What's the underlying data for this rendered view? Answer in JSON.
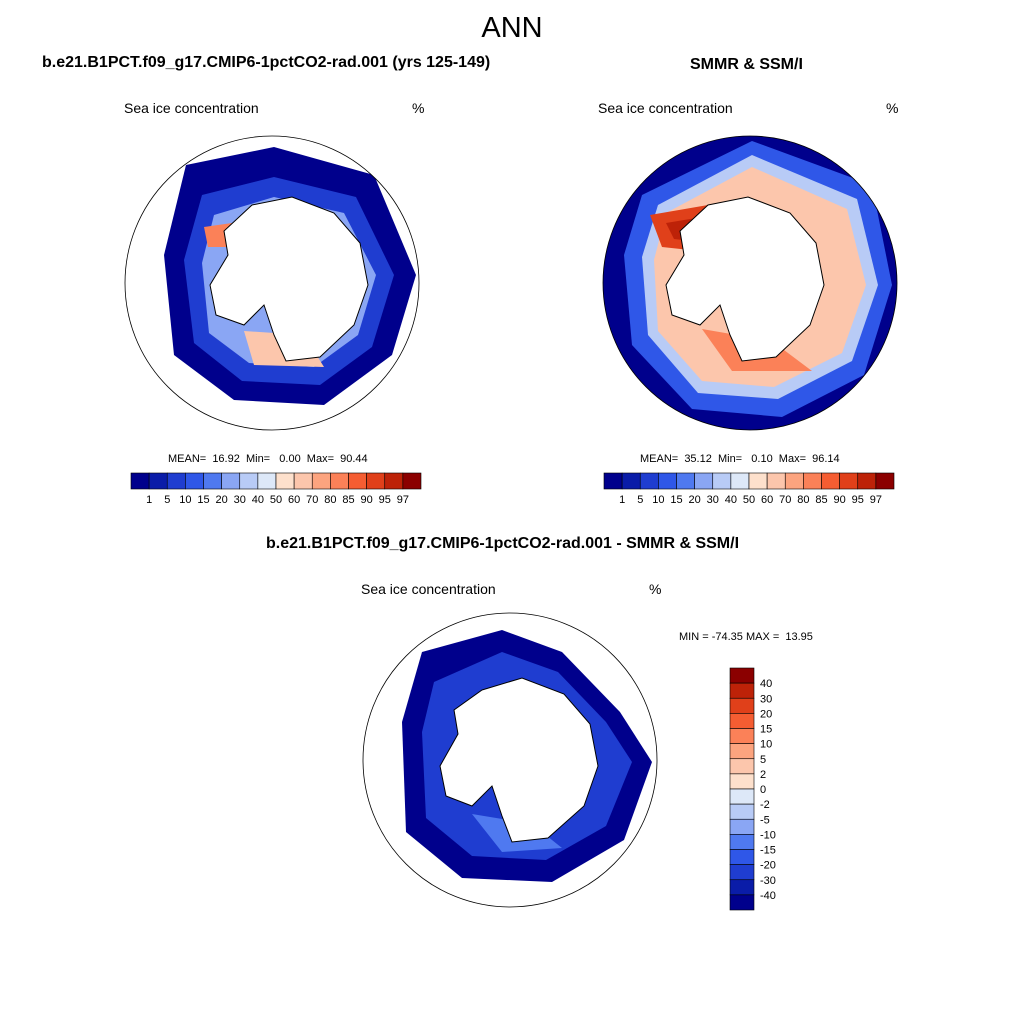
{
  "title": "ANN",
  "panels": [
    {
      "heading": "b.e21.B1PCT.f09_g17.CMIP6-1pctCO2-rad.001 (yrs 125-149)",
      "variable": "Sea ice concentration",
      "units": "%",
      "stats": "MEAN=  16.92  Min=   0.00  Max=  90.44"
    },
    {
      "heading": "SMMR & SSM/I",
      "variable": "Sea ice concentration",
      "units": "%",
      "stats": "MEAN=  35.12  Min=   0.10  Max=  96.14"
    },
    {
      "heading": "b.e21.B1PCT.f09_g17.CMIP6-1pctCO2-rad.001 - SMMR & SSM/I",
      "variable": "Sea ice concentration",
      "units": "%",
      "stats": "MIN = -74.35 MAX =  13.95"
    }
  ],
  "concentration_scale": {
    "labels": [
      "1",
      "5",
      "10",
      "15",
      "20",
      "30",
      "40",
      "50",
      "60",
      "70",
      "80",
      "85",
      "90",
      "95",
      "97"
    ],
    "colors": [
      "#00008c",
      "#0a1ca8",
      "#1f3dd0",
      "#2f57e8",
      "#4f79f0",
      "#8aa6f4",
      "#b8cbf6",
      "#dde8f8",
      "#fde0cc",
      "#fcc6ac",
      "#fca47f",
      "#fb8158",
      "#f55d32",
      "#e0401a",
      "#bd2208",
      "#8b0000"
    ]
  },
  "difference_scale": {
    "labels": [
      "40",
      "30",
      "20",
      "15",
      "10",
      "5",
      "2",
      "0",
      "-2",
      "-5",
      "-10",
      "-15",
      "-20",
      "-30",
      "-40"
    ],
    "colors": [
      "#8b0000",
      "#bd2208",
      "#e0401a",
      "#f55d32",
      "#fb8158",
      "#fca47f",
      "#fcc6ac",
      "#fde0cc",
      "#dde8f8",
      "#b8cbf6",
      "#8aa6f4",
      "#4f79f0",
      "#2f57e8",
      "#1f3dd0",
      "#0a1ca8",
      "#00008c"
    ]
  }
}
